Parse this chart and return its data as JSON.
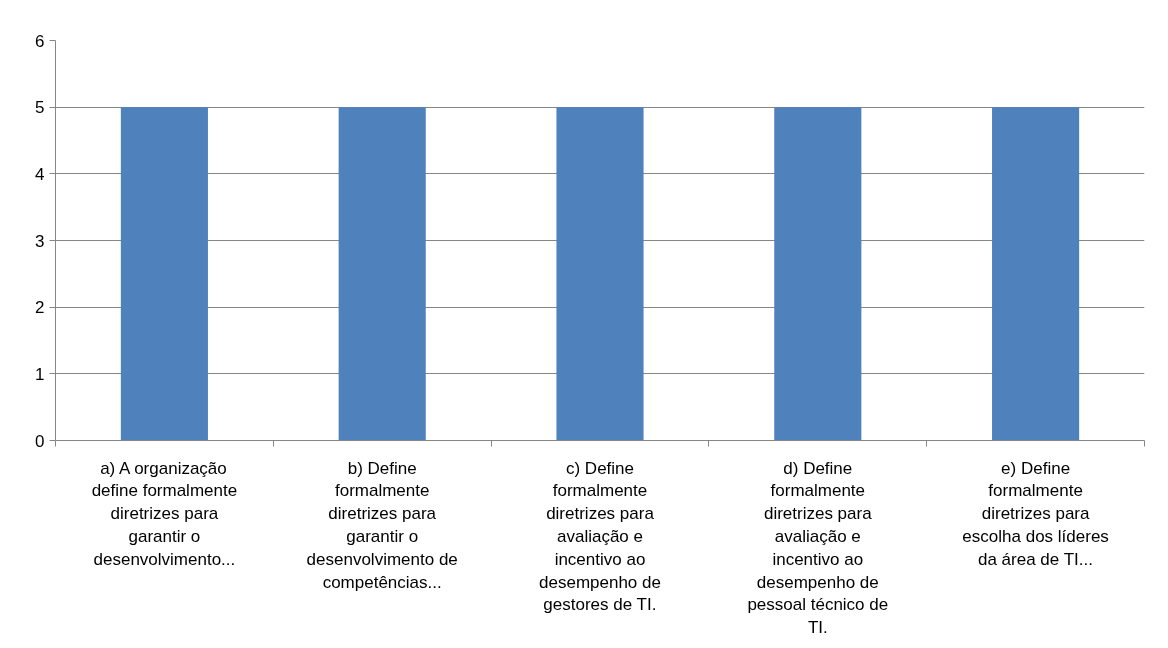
{
  "chart_data": {
    "type": "bar",
    "categories": [
      "a) A organização define formalmente diretrizes para garantir o desenvolvimento...",
      "b) Define formalmente diretrizes para garantir o desenvolvimento de competências...",
      "c) Define formalmente diretrizes para avaliação e incentivo ao desempenho de gestores de TI.",
      "d) Define formalmente diretrizes para avaliação e incentivo ao desempenho de pessoal técnico de TI.",
      "e) Define formalmente diretrizes para escolha dos líderes da área de TI..."
    ],
    "values": [
      5,
      5,
      5,
      5,
      5
    ],
    "color": "#4f81bd",
    "ylim": [
      0,
      6
    ],
    "yticks": [
      0,
      1,
      2,
      3,
      4,
      5,
      6
    ],
    "grid": "y"
  }
}
